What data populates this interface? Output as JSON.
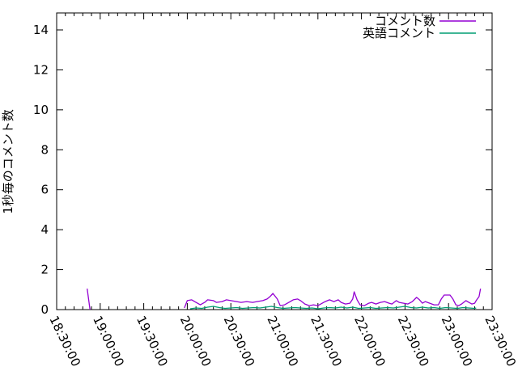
{
  "chart_data": {
    "type": "line",
    "title": "",
    "xlabel": "",
    "ylabel": "1秒毎のコメント数",
    "grid": false,
    "legend": {
      "position": "top-right-inside"
    },
    "x_axis": {
      "unit": "minutes_after_18:30:00",
      "range_minutes": [
        0,
        300
      ],
      "major_tick_minutes": 30,
      "minor_tick_minutes": 6,
      "tick_labels": [
        "18:30:00",
        "19:00:00",
        "19:30:00",
        "20:00:00",
        "20:30:00",
        "21:00:00",
        "21:30:00",
        "22:00:00",
        "22:30:00",
        "23:00:00",
        "23:30:00"
      ]
    },
    "y_axis": {
      "range": [
        0,
        14.85
      ],
      "tick_values": [
        0,
        2,
        4,
        6,
        8,
        10,
        12,
        14
      ],
      "tick_labels": [
        "0",
        "2",
        "4",
        "6",
        "8",
        "10",
        "12",
        "14"
      ]
    },
    "series": [
      {
        "name": "コメント数",
        "color": "#9400d3",
        "segments": [
          [
            [
              21,
              1.05
            ],
            [
              23,
              0
            ]
          ],
          [
            [
              88,
              0.08
            ],
            [
              90,
              0.45
            ],
            [
              93,
              0.49
            ],
            [
              96,
              0.36
            ],
            [
              99,
              0.24
            ],
            [
              102,
              0.36
            ],
            [
              104,
              0.49
            ],
            [
              108,
              0.45
            ],
            [
              110,
              0.36
            ],
            [
              114,
              0.4
            ],
            [
              117,
              0.49
            ],
            [
              120,
              0.45
            ],
            [
              124,
              0.4
            ],
            [
              127,
              0.36
            ],
            [
              131,
              0.4
            ],
            [
              135,
              0.36
            ],
            [
              138,
              0.4
            ],
            [
              142,
              0.45
            ],
            [
              145,
              0.53
            ],
            [
              147,
              0.65
            ],
            [
              149,
              0.81
            ],
            [
              152,
              0.53
            ],
            [
              154,
              0.2
            ],
            [
              157,
              0.24
            ],
            [
              160,
              0.36
            ],
            [
              163,
              0.49
            ],
            [
              166,
              0.53
            ],
            [
              168,
              0.45
            ],
            [
              171,
              0.28
            ],
            [
              174,
              0.2
            ],
            [
              177,
              0.24
            ],
            [
              180,
              0.2
            ],
            [
              182,
              0.28
            ],
            [
              185,
              0.4
            ],
            [
              188,
              0.49
            ],
            [
              191,
              0.4
            ],
            [
              194,
              0.49
            ],
            [
              196,
              0.36
            ],
            [
              199,
              0.28
            ],
            [
              202,
              0.32
            ],
            [
              204,
              0.53
            ],
            [
              205,
              0.89
            ],
            [
              207,
              0.49
            ],
            [
              209,
              0.24
            ],
            [
              212,
              0.2
            ],
            [
              215,
              0.32
            ],
            [
              217,
              0.36
            ],
            [
              220,
              0.28
            ],
            [
              223,
              0.36
            ],
            [
              226,
              0.4
            ],
            [
              229,
              0.32
            ],
            [
              231,
              0.28
            ],
            [
              234,
              0.45
            ],
            [
              236,
              0.36
            ],
            [
              239,
              0.32
            ],
            [
              242,
              0.28
            ],
            [
              245,
              0.4
            ],
            [
              248,
              0.61
            ],
            [
              250,
              0.49
            ],
            [
              252,
              0.32
            ],
            [
              254,
              0.4
            ],
            [
              257,
              0.32
            ],
            [
              260,
              0.24
            ],
            [
              263,
              0.24
            ],
            [
              265,
              0.53
            ],
            [
              267,
              0.73
            ],
            [
              271,
              0.73
            ],
            [
              273,
              0.53
            ],
            [
              275,
              0.24
            ],
            [
              277,
              0.2
            ],
            [
              279,
              0.28
            ],
            [
              282,
              0.45
            ],
            [
              284,
              0.36
            ],
            [
              286,
              0.28
            ],
            [
              288,
              0.32
            ],
            [
              289,
              0.45
            ],
            [
              291,
              0.65
            ],
            [
              292,
              1.05
            ]
          ]
        ]
      },
      {
        "name": "英語コメント",
        "color": "#009e73",
        "segments": [
          [
            [
              92,
              0.04
            ],
            [
              96,
              0.08
            ],
            [
              100,
              0.06
            ],
            [
              104,
              0.12
            ],
            [
              108,
              0.16
            ],
            [
              112,
              0.1
            ],
            [
              116,
              0.06
            ],
            [
              120,
              0.08
            ],
            [
              124,
              0.1
            ],
            [
              128,
              0.06
            ],
            [
              132,
              0.08
            ],
            [
              136,
              0.1
            ],
            [
              140,
              0.08
            ],
            [
              144,
              0.12
            ],
            [
              148,
              0.16
            ],
            [
              152,
              0.1
            ],
            [
              156,
              0.06
            ],
            [
              160,
              0.08
            ],
            [
              164,
              0.1
            ],
            [
              168,
              0.08
            ],
            [
              172,
              0.06
            ],
            [
              176,
              0.08
            ],
            [
              180,
              0.04
            ],
            [
              184,
              0.08
            ],
            [
              188,
              0.1
            ],
            [
              192,
              0.08
            ],
            [
              196,
              0.12
            ],
            [
              200,
              0.08
            ],
            [
              204,
              0.12
            ],
            [
              208,
              0.06
            ],
            [
              212,
              0.08
            ],
            [
              216,
              0.1
            ],
            [
              220,
              0.06
            ],
            [
              224,
              0.08
            ],
            [
              228,
              0.1
            ],
            [
              232,
              0.08
            ],
            [
              236,
              0.12
            ],
            [
              240,
              0.16
            ],
            [
              244,
              0.1
            ],
            [
              248,
              0.08
            ],
            [
              252,
              0.12
            ],
            [
              256,
              0.08
            ],
            [
              260,
              0.1
            ],
            [
              264,
              0.06
            ],
            [
              268,
              0.1
            ],
            [
              272,
              0.08
            ],
            [
              276,
              0.06
            ],
            [
              280,
              0.1
            ],
            [
              284,
              0.08
            ],
            [
              288,
              0.06
            ],
            [
              289,
              0.08
            ]
          ]
        ]
      }
    ]
  }
}
